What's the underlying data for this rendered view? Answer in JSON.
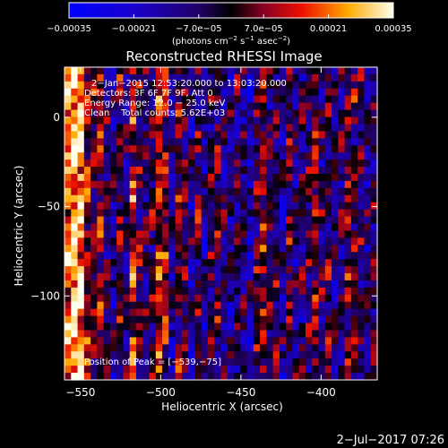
{
  "chart_data": {
    "type": "heatmap",
    "title": "Reconstructed RHESSI Image",
    "xlabel": "Heliocentric X (arcsec)",
    "ylabel": "Heliocentric Y (arcsec)",
    "xlim": [
      -560,
      -365
    ],
    "ylim": [
      -147,
      28
    ],
    "x_ticks": [
      -550,
      -500,
      -450,
      -400
    ],
    "x_tick_labels": [
      "−550",
      "−500",
      "−450",
      "−400"
    ],
    "y_ticks": [
      0,
      -50,
      -100
    ],
    "y_tick_labels": [
      "0",
      "−50",
      "−100"
    ],
    "colorbar": {
      "range": [
        -0.00035,
        0.00035
      ],
      "ticks": [
        -0.00035,
        -0.00021,
        -7e-05,
        7e-05,
        0.00021,
        0.00035
      ],
      "tick_labels": [
        "−0.00035",
        "−0.00021",
        "−7.0e−05",
        "7.0e−05",
        "0.00021",
        "0.00035"
      ],
      "unit_parts": [
        "(photons cm",
        "−2",
        " s",
        "−1",
        " asec",
        "−2",
        ")"
      ]
    },
    "annotations": [
      "2−Jan−2015 12:53:20.000 to 13:03:20.000",
      "Detectors: 3F 6F 7F 9F, Att 0",
      "Energy Range: 12.0 − 25.0 keV",
      "Clean    Total counts: 5.62E+03"
    ],
    "peak_label": "Position of Peak = [−539,−75]",
    "peak": [
      -539,
      -75
    ],
    "grid_columns": 48,
    "grid_rows": 44,
    "column_profile": [
      0.78,
      0.92,
      0.86,
      0.62,
      0.52,
      0.58,
      0.42,
      0.32,
      0.55,
      0.36,
      0.66,
      0.5,
      0.4,
      0.44,
      0.66,
      0.58,
      0.34,
      0.56,
      0.5,
      0.34,
      0.48,
      0.3,
      0.44,
      0.5,
      0.36,
      0.34,
      0.44,
      0.38,
      0.3,
      0.46,
      0.6,
      0.42,
      0.44,
      0.32,
      0.52,
      0.38,
      0.4,
      0.46,
      0.56,
      0.42,
      0.48,
      0.36,
      0.4,
      0.54,
      0.5,
      0.46,
      0.34,
      0.44
    ],
    "timestamp": "2−Jul−2017 07:26"
  }
}
